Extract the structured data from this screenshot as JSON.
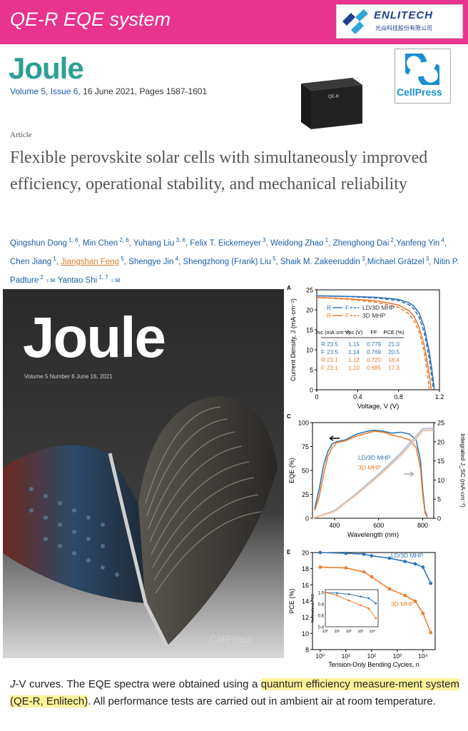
{
  "banner": {
    "title": "QE-R EQE system",
    "color": "#e8338f"
  },
  "logo": {
    "name": "ENLITECH",
    "subtitle": "光焱科技股份有限公司"
  },
  "journal": {
    "name": "Joule",
    "volume_link": "Volume 5, Issue 6,",
    "date_pages": " 16 June 2021, Pages 1587-1601"
  },
  "product_box_label": "QE-R",
  "cellpress_label": "CellPress",
  "article": {
    "type": "Article",
    "title": "Flexible perovskite solar cells with simultaneously improved efficiency, operational stability, and mechanical reliability"
  },
  "authors": [
    {
      "name": "Qingshun Dong",
      "aff": "1, 6",
      "sep": ", "
    },
    {
      "name": "Min Chen",
      "aff": "2, 6",
      "sep": ", "
    },
    {
      "name": "Yuhang Liu",
      "aff": "3, 6",
      "sep": ", "
    },
    {
      "name": "Felix T. Eickemeyer",
      "aff": "3",
      "sep": ", "
    },
    {
      "name": "Weidong Zhao",
      "aff": "1",
      "sep": ", "
    },
    {
      "name": "Zhenghong Dai",
      "aff": "2",
      "sep": ","
    },
    {
      "name": "Yanfeng Yin",
      "aff": "4",
      "sep": ", "
    },
    {
      "name": "Chen Jiang",
      "aff": "1",
      "sep": ", "
    },
    {
      "name": "Jiangshan Feng",
      "aff": "5",
      "sep": ", ",
      "highlight": true
    },
    {
      "name": "Shengye Jin",
      "aff": "4",
      "sep": ", "
    },
    {
      "name": "Shengzhong (Frank) Liu",
      "aff": "5",
      "sep": ", "
    },
    {
      "name": "Shaik M. Zakeeruddin",
      "aff": "3",
      "sep": ","
    },
    {
      "name": "Michael Grätzel",
      "aff": "3",
      "sep": ", "
    },
    {
      "name": "Nitin P. Padture",
      "aff": "2",
      "sep": " ",
      "icons": true
    },
    {
      "name": "Yantao Shi",
      "aff": "1, 7",
      "sep": " ",
      "icons": true
    }
  ],
  "cover": {
    "title": "Joule",
    "issue": "Volume 5  Number 6  June 16, 2021",
    "publisher": "CellPress"
  },
  "caption": {
    "pre": "J-V curves. The EQE spectra were obtained using a ",
    "highlight": "quantum efficiency measure-ment system (QE-R, Enlitech)",
    "post": ". All performance tests are carried out in ambient air at room temperature."
  },
  "chart_data": [
    {
      "panel": "A",
      "type": "line",
      "xlabel": "Voltage, V (V)",
      "ylabel": "Current Density, J (mA·cm⁻²)",
      "xlim": [
        0,
        1.2
      ],
      "ylim": [
        0,
        25
      ],
      "xticks": [
        "0",
        "0.4",
        "0.8",
        "1.2"
      ],
      "yticks": [
        "0",
        "5",
        "10",
        "15",
        "20",
        "25"
      ],
      "legend": [
        {
          "r": "R",
          "f": "F",
          "label": "LD/3D MHP",
          "color": "#2e75b6"
        },
        {
          "r": "R",
          "f": "F",
          "label": "3D MHP",
          "color": "#ed7d31"
        }
      ],
      "table": {
        "headers": [
          "Jsc (mA·cm⁻²)",
          "Voc (V)",
          "FF",
          "PCE (%)"
        ],
        "rows": [
          {
            "scan": "R",
            "jsc": "23.5",
            "voc": "1.15",
            "ff": "0.779",
            "pce": "21.0",
            "color": "#2e75b6"
          },
          {
            "scan": "F",
            "jsc": "23.5",
            "voc": "1.14",
            "ff": "0.769",
            "pce": "20.5",
            "color": "#2e75b6"
          },
          {
            "scan": "R",
            "jsc": "23.1",
            "voc": "1.12",
            "ff": "0.720",
            "pce": "18.4",
            "color": "#ed7d31"
          },
          {
            "scan": "F",
            "jsc": "23.1",
            "voc": "1.10",
            "ff": "0.685",
            "pce": "17.3",
            "color": "#ed7d31"
          }
        ]
      },
      "series": [
        {
          "name": "LD/3D MHP R",
          "color": "#2e75b6",
          "dash": false,
          "x": [
            0,
            0.2,
            0.4,
            0.6,
            0.8,
            0.9,
            0.95,
            1.0,
            1.05,
            1.1,
            1.13,
            1.15
          ],
          "y": [
            23.5,
            23.4,
            23.3,
            23.1,
            22.6,
            21.8,
            20.9,
            19.2,
            15.8,
            9.5,
            4.2,
            0
          ]
        },
        {
          "name": "LD/3D MHP F",
          "color": "#2e75b6",
          "dash": true,
          "x": [
            0,
            0.2,
            0.4,
            0.6,
            0.8,
            0.9,
            0.95,
            1.0,
            1.05,
            1.1,
            1.12,
            1.14
          ],
          "y": [
            23.5,
            23.4,
            23.2,
            22.9,
            22.3,
            21.3,
            20.2,
            18.2,
            14.4,
            7.8,
            4.0,
            0
          ]
        },
        {
          "name": "3D MHP R",
          "color": "#ed7d31",
          "dash": false,
          "x": [
            0,
            0.2,
            0.4,
            0.6,
            0.8,
            0.9,
            0.95,
            1.0,
            1.05,
            1.09,
            1.12
          ],
          "y": [
            23.1,
            22.9,
            22.6,
            22.2,
            21.2,
            19.8,
            18.4,
            15.8,
            11.2,
            5.6,
            0
          ]
        },
        {
          "name": "3D MHP F",
          "color": "#ed7d31",
          "dash": true,
          "x": [
            0,
            0.2,
            0.4,
            0.6,
            0.8,
            0.9,
            0.95,
            1.0,
            1.05,
            1.08,
            1.1
          ],
          "y": [
            23.1,
            22.8,
            22.4,
            21.8,
            20.6,
            19.0,
            17.4,
            14.6,
            9.6,
            4.8,
            0
          ]
        }
      ]
    },
    {
      "panel": "C",
      "type": "line",
      "xlabel": "Wavelength (nm)",
      "ylabel": "EQE (%)",
      "y2label": "Integrated J_SC (mA·cm⁻²)",
      "xlim": [
        300,
        850
      ],
      "ylim": [
        0,
        100
      ],
      "y2lim": [
        0,
        25
      ],
      "xticks": [
        "400",
        "600",
        "800"
      ],
      "yticks": [
        "0",
        "25",
        "50",
        "75",
        "100"
      ],
      "y2ticks": [
        "0",
        "5",
        "10",
        "15",
        "20",
        "25"
      ],
      "series": [
        {
          "name": "LD/3D MHP",
          "color": "#2e75b6",
          "x": [
            310,
            330,
            350,
            370,
            390,
            410,
            450,
            500,
            550,
            580,
            620,
            660,
            700,
            740,
            770,
            790,
            800,
            810,
            820
          ],
          "y": [
            10,
            30,
            55,
            70,
            78,
            80,
            82,
            88,
            91,
            92,
            91,
            89,
            90,
            88,
            82,
            60,
            30,
            8,
            2
          ]
        },
        {
          "name": "3D MHP",
          "color": "#ed7d31",
          "x": [
            310,
            330,
            350,
            370,
            390,
            410,
            450,
            500,
            550,
            580,
            620,
            660,
            700,
            740,
            770,
            790,
            800,
            810,
            820
          ],
          "y": [
            8,
            22,
            45,
            65,
            74,
            79,
            81,
            86,
            89,
            91,
            90,
            87,
            85,
            82,
            74,
            52,
            25,
            6,
            1
          ]
        },
        {
          "name": "LD/3D MHP Jsc",
          "color": "#a8c4dc",
          "axis": "y2",
          "x": [
            300,
            400,
            500,
            600,
            700,
            770,
            800,
            850
          ],
          "y": [
            0,
            2,
            6.5,
            11.5,
            17,
            21.5,
            23.4,
            23.5
          ]
        },
        {
          "name": "3D MHP Jsc",
          "color": "#f2c19e",
          "axis": "y2",
          "x": [
            300,
            400,
            500,
            600,
            700,
            770,
            800,
            850
          ],
          "y": [
            0,
            1.8,
            6.2,
            11,
            16.4,
            20.8,
            22.9,
            23.0
          ]
        }
      ],
      "labels": [
        "LD/3D MHP",
        "3D MHP"
      ]
    },
    {
      "panel": "E",
      "type": "line",
      "xlabel": "Tension-Only Bending Cycles, n",
      "ylabel": "PCE (%)",
      "xscale": "log",
      "xlim": [
        0.5,
        30000
      ],
      "ylim": [
        8,
        20
      ],
      "xticks": [
        "10⁰",
        "10¹",
        "10²",
        "10³",
        "10⁴"
      ],
      "yticks": [
        "8",
        "10",
        "12",
        "14",
        "16",
        "18",
        "20"
      ],
      "series": [
        {
          "name": "LD/3D MHP",
          "color": "#2e75b6",
          "x": [
            1,
            10,
            50,
            100,
            500,
            2000,
            5000,
            10000,
            20000
          ],
          "y": [
            20.0,
            19.9,
            19.8,
            19.6,
            19.3,
            18.9,
            18.6,
            18.2,
            16.2
          ]
        },
        {
          "name": "3D MHP",
          "color": "#ed7d31",
          "x": [
            1,
            10,
            50,
            100,
            500,
            2000,
            5000,
            10000,
            20000
          ],
          "y": [
            18.2,
            18.1,
            17.6,
            17.0,
            15.5,
            14.7,
            14.0,
            12.5,
            10.1
          ]
        }
      ],
      "inset": {
        "ylabel": "Normalized PCE",
        "yticks": [
          "0.4",
          "0.6",
          "0.8",
          "1.0"
        ],
        "xticks": [
          "10⁰",
          "10¹",
          "10²",
          "10³",
          "10⁴"
        ],
        "series": [
          {
            "name": "LD/3D MHP",
            "color": "#2e75b6",
            "x": [
              1,
              10,
              100,
              1000,
              5000,
              20000
            ],
            "y": [
              1.0,
              0.99,
              0.97,
              0.93,
              0.9,
              0.81
            ]
          },
          {
            "name": "3D MHP",
            "color": "#ed7d31",
            "x": [
              1,
              10,
              100,
              1000,
              5000,
              20000
            ],
            "y": [
              1.0,
              0.95,
              0.86,
              0.78,
              0.72,
              0.55
            ]
          }
        ]
      },
      "labels": [
        "LD/3D MHP",
        "3D MHP"
      ]
    }
  ]
}
